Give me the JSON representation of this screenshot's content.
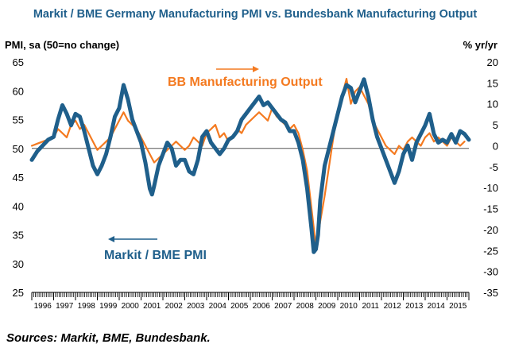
{
  "chart_data": {
    "type": "line",
    "title": "Markit / BME Germany Manufacturing PMI vs. Bundesbank Manufacturing Output",
    "ylabel_left": "PMI, sa (50=no change)",
    "ylabel_right": "% yr/yr",
    "left_axis": {
      "ylim": [
        25,
        65
      ],
      "ticks": [
        "25",
        "30",
        "35",
        "40",
        "45",
        "50",
        "55",
        "60",
        "65"
      ]
    },
    "right_axis": {
      "ylim": [
        -35,
        20
      ],
      "ticks": [
        "-35",
        "-30",
        "-25",
        "-20",
        "-15",
        "-10",
        "-5",
        "0",
        "5",
        "10",
        "15",
        "20"
      ]
    },
    "reference_line": {
      "axis": "left",
      "value": 50
    },
    "x_range": [
      1996.0,
      2016.0
    ],
    "x_tick_labels": [
      "1996",
      "1997",
      "1998",
      "1999",
      "2000",
      "2001",
      "2002",
      "2003",
      "2004",
      "2005",
      "2006",
      "2007",
      "2008",
      "2009",
      "2010",
      "2011",
      "2012",
      "2013",
      "2014",
      "2015"
    ],
    "grid": false,
    "series": [
      {
        "name": "Markit / BME PMI",
        "axis": "left",
        "color": "#1f5f8b",
        "x": [
          1996.0,
          1996.25,
          1996.5,
          1996.75,
          1997.0,
          1997.2,
          1997.4,
          1997.6,
          1997.8,
          1998.0,
          1998.2,
          1998.4,
          1998.6,
          1998.8,
          1999.0,
          1999.2,
          1999.4,
          1999.6,
          1999.8,
          2000.0,
          2000.2,
          2000.4,
          2000.6,
          2000.8,
          2001.0,
          2001.2,
          2001.4,
          2001.5,
          2001.6,
          2001.8,
          2002.0,
          2002.2,
          2002.4,
          2002.6,
          2002.8,
          2003.0,
          2003.2,
          2003.4,
          2003.6,
          2003.8,
          2004.0,
          2004.2,
          2004.4,
          2004.6,
          2004.8,
          2005.0,
          2005.2,
          2005.4,
          2005.6,
          2005.8,
          2006.0,
          2006.2,
          2006.4,
          2006.6,
          2006.8,
          2007.0,
          2007.2,
          2007.4,
          2007.6,
          2007.8,
          2008.0,
          2008.2,
          2008.4,
          2008.6,
          2008.8,
          2008.9,
          2009.0,
          2009.1,
          2009.2,
          2009.4,
          2009.6,
          2009.8,
          2010.0,
          2010.2,
          2010.4,
          2010.6,
          2010.8,
          2011.0,
          2011.2,
          2011.4,
          2011.6,
          2011.8,
          2012.0,
          2012.2,
          2012.4,
          2012.6,
          2012.8,
          2013.0,
          2013.2,
          2013.4,
          2013.6,
          2013.8,
          2014.0,
          2014.2,
          2014.4,
          2014.6,
          2014.8,
          2015.0,
          2015.2,
          2015.4,
          2015.6,
          2015.8,
          2016.0
        ],
        "values": [
          48,
          49.5,
          50.5,
          51.5,
          52,
          55,
          57.5,
          56,
          54,
          56,
          55.5,
          53,
          50,
          47,
          45.5,
          47,
          49,
          52,
          55.5,
          57,
          61,
          58.5,
          55,
          53,
          51,
          47.5,
          43,
          42,
          43.5,
          47,
          49,
          51,
          50,
          47,
          48,
          48,
          46,
          45.5,
          48,
          52,
          53,
          51,
          50,
          49,
          50,
          51.5,
          52,
          53,
          55,
          56,
          57,
          58,
          59,
          57.5,
          58,
          57,
          56,
          55,
          54.5,
          53,
          53,
          51,
          48,
          43,
          36,
          32,
          32.5,
          35,
          41,
          47,
          50,
          53,
          56,
          59,
          61,
          60.5,
          58,
          60,
          62,
          59,
          55,
          52,
          50,
          48,
          46,
          44,
          46,
          49,
          50.5,
          48,
          51,
          52.5,
          54,
          56,
          52.5,
          51,
          51.5,
          51,
          52.5,
          51,
          53,
          52.5,
          51.5
        ]
      },
      {
        "name": "BB Manufacturing Output",
        "axis": "right",
        "color": "#f47a20",
        "x": [
          1996.0,
          1996.25,
          1996.5,
          1996.75,
          1997.0,
          1997.2,
          1997.4,
          1997.6,
          1997.8,
          1998.0,
          1998.2,
          1998.4,
          1998.6,
          1998.8,
          1999.0,
          1999.2,
          1999.4,
          1999.6,
          1999.8,
          2000.0,
          2000.2,
          2000.4,
          2000.6,
          2000.8,
          2001.0,
          2001.2,
          2001.4,
          2001.6,
          2001.8,
          2002.0,
          2002.2,
          2002.4,
          2002.6,
          2002.8,
          2003.0,
          2003.2,
          2003.4,
          2003.6,
          2003.8,
          2004.0,
          2004.2,
          2004.4,
          2004.6,
          2004.8,
          2005.0,
          2005.2,
          2005.4,
          2005.6,
          2005.8,
          2006.0,
          2006.2,
          2006.4,
          2006.6,
          2006.8,
          2007.0,
          2007.2,
          2007.4,
          2007.6,
          2007.8,
          2008.0,
          2008.2,
          2008.4,
          2008.6,
          2008.8,
          2009.0,
          2009.1,
          2009.2,
          2009.4,
          2009.6,
          2009.8,
          2010.0,
          2010.2,
          2010.4,
          2010.6,
          2010.8,
          2011.0,
          2011.2,
          2011.4,
          2011.6,
          2011.8,
          2012.0,
          2012.2,
          2012.4,
          2012.6,
          2012.8,
          2013.0,
          2013.2,
          2013.4,
          2013.6,
          2013.8,
          2014.0,
          2014.2,
          2014.4,
          2014.6,
          2014.8,
          2015.0,
          2015.2,
          2015.4,
          2015.6,
          2015.8
        ],
        "values": [
          0,
          0.5,
          1,
          1.5,
          2,
          4,
          3,
          2,
          5,
          6,
          4,
          5,
          3,
          1,
          -1,
          0,
          1,
          2,
          4,
          6,
          8,
          6,
          5,
          4,
          2,
          0,
          -2,
          -4,
          -3,
          -2,
          -1,
          0,
          1,
          0,
          -1,
          0,
          2,
          1,
          0,
          3,
          4,
          5,
          2,
          3,
          1,
          2,
          4,
          3,
          5,
          6,
          7,
          8,
          7,
          6,
          9,
          7,
          6,
          5,
          4,
          5,
          3,
          -1,
          -6,
          -15,
          -24,
          -22,
          -18,
          -12,
          -5,
          2,
          8,
          12,
          16,
          10,
          13,
          14,
          12,
          10,
          6,
          4,
          2,
          0,
          -1,
          -2,
          0,
          -1,
          1,
          2,
          1,
          0,
          2,
          3,
          1,
          2,
          1,
          0,
          2,
          1,
          0,
          1
        ]
      }
    ],
    "annotations": [
      {
        "text": "BB Manufacturing Output",
        "arrow": "right"
      },
      {
        "text": "Markit / BME PMI",
        "arrow": "left"
      }
    ]
  },
  "footer": {
    "sources": "Sources: Markit, BME, Bundesbank."
  }
}
